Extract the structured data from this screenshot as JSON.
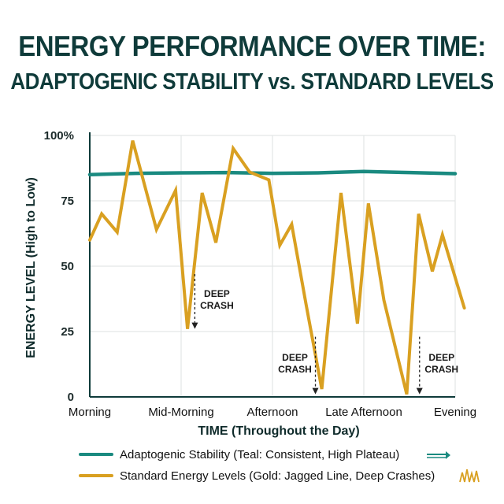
{
  "header": {
    "title_line1": "ENERGY PERFORMANCE OVER TIME:",
    "title_line2": "ADAPTOGENIC STABILITY vs. STANDARD LEVELS"
  },
  "chart_data": {
    "type": "line",
    "title": "ENERGY PERFORMANCE OVER TIME: ADAPTOGENIC STABILITY vs. STANDARD LEVELS",
    "xlabel": "TIME (Throughout the Day)",
    "ylabel": "ENERGY LEVEL (High to Low)",
    "ylim": [
      0,
      100
    ],
    "xlim": [
      0,
      4
    ],
    "y_ticks": [
      {
        "value": 100,
        "label": "100%"
      },
      {
        "value": 75,
        "label": "75"
      },
      {
        "value": 50,
        "label": "50"
      },
      {
        "value": 25,
        "label": "25"
      },
      {
        "value": 0,
        "label": "0"
      }
    ],
    "x_ticks": [
      {
        "value": 0,
        "label": "Morning"
      },
      {
        "value": 1,
        "label": "Mid-Morning"
      },
      {
        "value": 2,
        "label": "Afternoon"
      },
      {
        "value": 3,
        "label": "Late Afternoon"
      },
      {
        "value": 4,
        "label": "Evening"
      }
    ],
    "grid": true,
    "legend_position": "bottom",
    "series": [
      {
        "name": "Adaptogenic Stability (Teal: Consistent, High Plateau)",
        "color": "#1a8a80",
        "x": [
          0,
          0.5,
          1,
          1.5,
          2,
          2.5,
          3,
          3.5,
          4
        ],
        "values": [
          85,
          85.5,
          85.7,
          85.8,
          85.5,
          85.7,
          86.2,
          85.8,
          85.4
        ]
      },
      {
        "name": "Standard Energy Levels (Gold: Jagged Line, Deep Crashes)",
        "color": "#d9a021",
        "x": [
          0,
          0.13,
          0.3,
          0.47,
          0.73,
          0.94,
          1.07,
          1.23,
          1.38,
          1.57,
          1.75,
          1.96,
          2.08,
          2.21,
          2.37,
          2.54,
          2.75,
          2.93,
          3.05,
          3.22,
          3.47,
          3.6,
          3.75,
          3.86,
          4.1
        ],
        "values": [
          60,
          70,
          63,
          98,
          64,
          79,
          26,
          78,
          59,
          95,
          86,
          83,
          58,
          66,
          35,
          3,
          78,
          28,
          74,
          37,
          1,
          70,
          48,
          62,
          34
        ]
      }
    ],
    "annotations": [
      {
        "text": [
          "DEEP",
          "CRASH"
        ],
        "x": 1.15,
        "y_from": 47,
        "y_to": 26,
        "label_side": "right"
      },
      {
        "text": [
          "DEEP",
          "CRASH"
        ],
        "x": 2.47,
        "y_from": 23,
        "y_to": 1,
        "label_side": "left"
      },
      {
        "text": [
          "DEEP",
          "CRASH"
        ],
        "x": 3.61,
        "y_from": 23,
        "y_to": 1,
        "label_side": "right"
      }
    ]
  },
  "legend": {
    "items": [
      {
        "label": "Adaptogenic Stability (Teal: Consistent, High Plateau)",
        "color": "#1a8a80",
        "icon": "arrow-right-icon"
      },
      {
        "label": "Standard Energy Levels (Gold: Jagged Line, Deep Crashes)",
        "color": "#d9a021",
        "icon": "zigzag-icon"
      }
    ]
  }
}
